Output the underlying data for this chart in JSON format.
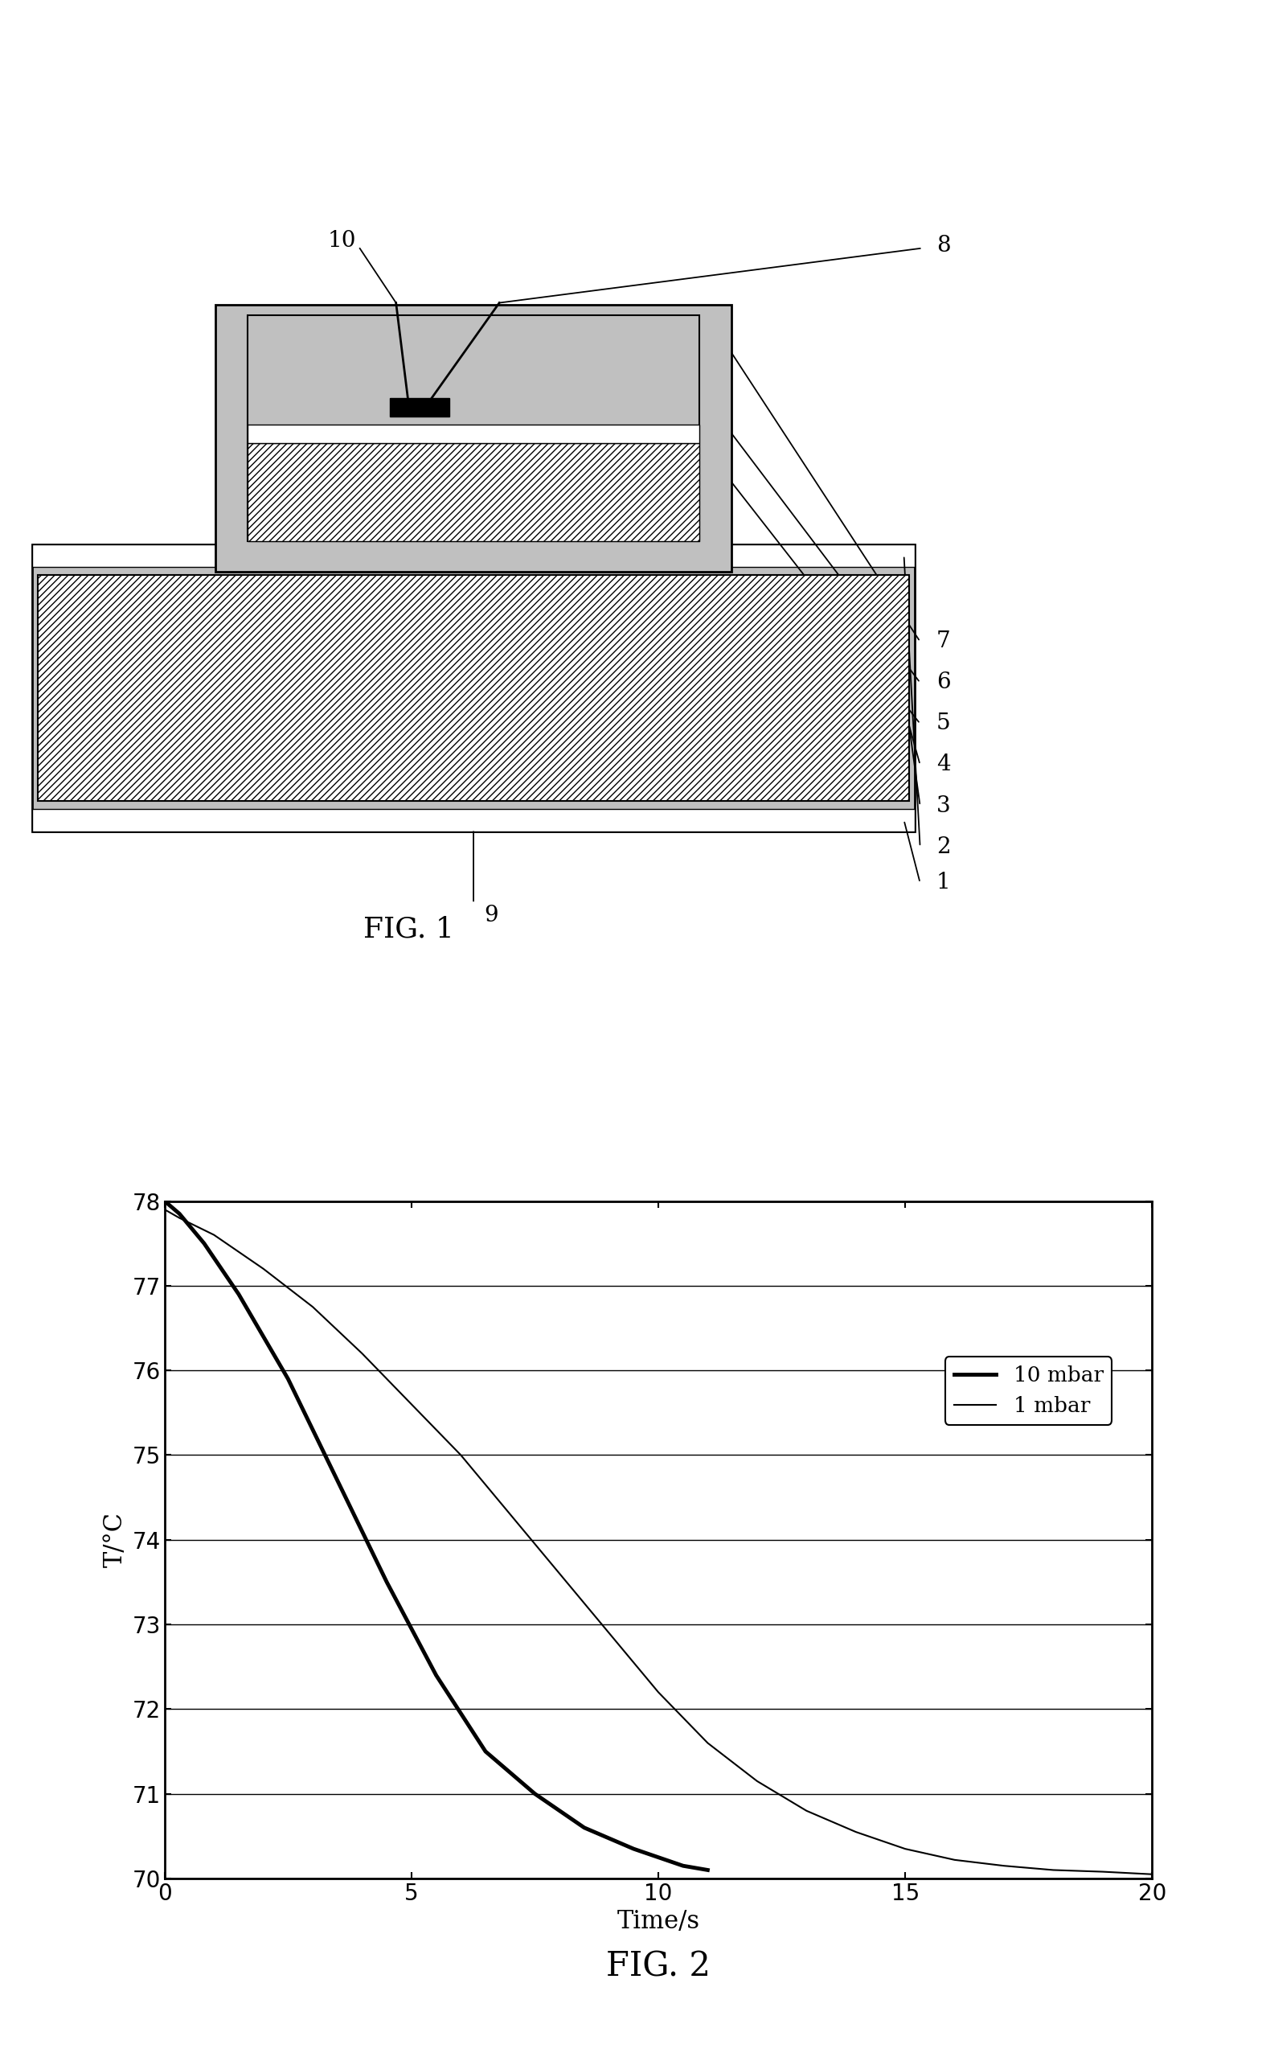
{
  "fig_title1": "FIG. 1",
  "fig_title2": "FIG. 2",
  "graph_xlabel": "Time/s",
  "graph_ylabel": "T/°C",
  "graph_xlim": [
    0,
    20
  ],
  "graph_ylim": [
    70,
    78
  ],
  "graph_yticks": [
    70,
    71,
    72,
    73,
    74,
    75,
    76,
    77,
    78
  ],
  "graph_xticks": [
    0,
    5,
    10,
    15,
    20
  ],
  "line1_label": "10 mbar",
  "line1_color": "#000000",
  "line1_lw": 3.5,
  "line2_label": "1 mbar",
  "line2_color": "#000000",
  "line2_lw": 1.5,
  "bg_color": "#ffffff",
  "stipple_color": "#c0c0c0",
  "white": "#ffffff",
  "black": "#000000"
}
